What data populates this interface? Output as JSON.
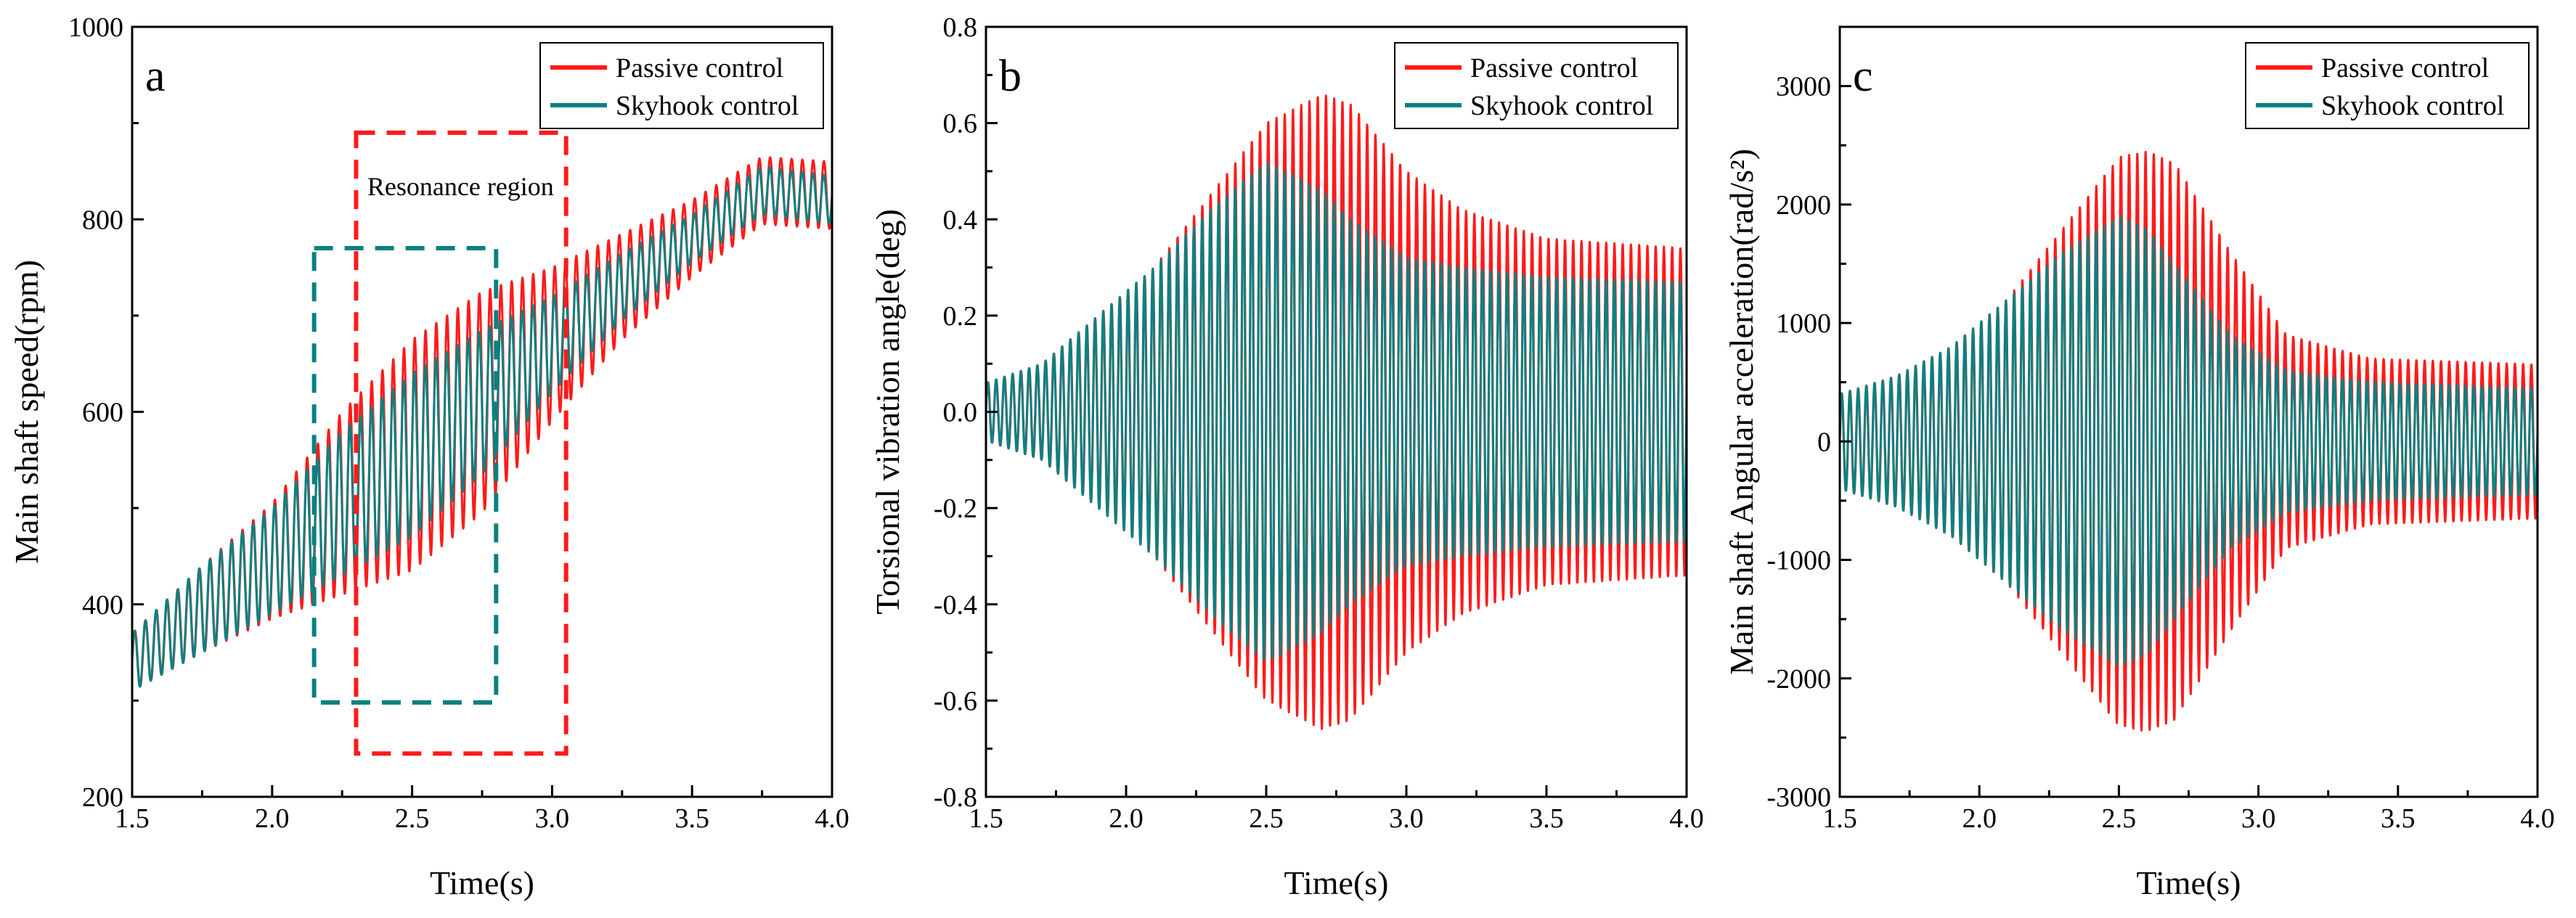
{
  "chart_data": [
    {
      "type": "line",
      "panel_label": "a",
      "xlabel": "Time(s)",
      "ylabel": "Main shaft speed(rpm)",
      "xlim": [
        1.5,
        4.0
      ],
      "ylim": [
        200,
        1000
      ],
      "xticks": [
        "1.5",
        "2.0",
        "2.5",
        "3.0",
        "3.5",
        "4.0"
      ],
      "yticks": [
        "200",
        "400",
        "600",
        "800",
        "1000"
      ],
      "legend_position": "top-right",
      "annotation": "Resonance region",
      "regions": [
        {
          "color": "#ff1a1a",
          "x": [
            2.3,
            3.05
          ],
          "y": [
            245,
            890
          ]
        },
        {
          "color": "#0a8080",
          "x": [
            2.15,
            2.8
          ],
          "y": [
            298,
            770
          ]
        }
      ],
      "series": [
        {
          "name": "Passive control",
          "color": "#ff1a1a",
          "trend": {
            "t": [
              1.5,
              1.75,
              2.0,
              2.25,
              2.5,
              2.75,
              3.0,
              3.25,
              3.5,
              3.75,
              4.0
            ],
            "v": [
              340,
              395,
              445,
              505,
              555,
              610,
              670,
              730,
              780,
              830,
              825
            ]
          },
          "amplitude": {
            "t": [
              1.5,
              1.75,
              2.0,
              2.25,
              2.5,
              2.75,
              3.0,
              3.25,
              3.5,
              3.75,
              4.0
            ],
            "v": [
              30,
              45,
              60,
              95,
              120,
              115,
              80,
              55,
              40,
              35,
              35
            ]
          }
        },
        {
          "name": "Skyhook control",
          "color": "#0a8080",
          "trend": {
            "t": [
              1.5,
              1.75,
              2.0,
              2.25,
              2.5,
              2.75,
              3.0,
              3.25,
              3.5,
              3.75,
              4.0
            ],
            "v": [
              340,
              395,
              445,
              505,
              555,
              610,
              670,
              730,
              780,
              830,
              820
            ]
          },
          "amplitude": {
            "t": [
              1.5,
              1.75,
              2.0,
              2.25,
              2.5,
              2.75,
              3.0,
              3.25,
              3.5,
              3.75,
              4.0
            ],
            "v": [
              30,
              45,
              55,
              75,
              85,
              75,
              50,
              35,
              25,
              25,
              25
            ]
          }
        }
      ]
    },
    {
      "type": "line",
      "panel_label": "b",
      "xlabel": "Time(s)",
      "ylabel": "Torsional vibration angle(deg)",
      "xlim": [
        1.5,
        4.0
      ],
      "ylim": [
        -0.8,
        0.8
      ],
      "xticks": [
        "1.5",
        "2.0",
        "2.5",
        "3.0",
        "3.5",
        "4.0"
      ],
      "yticks": [
        "-0.8",
        "-0.6",
        "-0.4",
        "-0.2",
        "0.0",
        "0.2",
        "0.4",
        "0.6",
        "0.8"
      ],
      "legend_position": "top-right",
      "series": [
        {
          "name": "Passive control",
          "color": "#ff1a1a",
          "trend": {
            "t": [
              1.5,
              4.0
            ],
            "v": [
              0,
              0
            ]
          },
          "amplitude": {
            "t": [
              1.5,
              1.7,
              1.9,
              2.1,
              2.3,
              2.5,
              2.7,
              2.8,
              3.0,
              3.2,
              3.5,
              4.0
            ],
            "v": [
              0.06,
              0.1,
              0.2,
              0.3,
              0.45,
              0.6,
              0.66,
              0.64,
              0.5,
              0.42,
              0.36,
              0.34
            ]
          }
        },
        {
          "name": "Skyhook control",
          "color": "#0a8080",
          "trend": {
            "t": [
              1.5,
              4.0
            ],
            "v": [
              0,
              0
            ]
          },
          "amplitude": {
            "t": [
              1.5,
              1.7,
              1.9,
              2.1,
              2.3,
              2.5,
              2.7,
              2.8,
              3.0,
              3.2,
              3.5,
              4.0
            ],
            "v": [
              0.06,
              0.1,
              0.2,
              0.3,
              0.42,
              0.52,
              0.46,
              0.4,
              0.32,
              0.3,
              0.28,
              0.27
            ]
          }
        }
      ]
    },
    {
      "type": "line",
      "panel_label": "c",
      "xlabel": "Time(s)",
      "ylabel": "Main shaft Angular acceleration(rad/s²)",
      "xlim": [
        1.5,
        4.0
      ],
      "ylim": [
        -3000,
        3500
      ],
      "xticks": [
        "1.5",
        "2.0",
        "2.5",
        "3.0",
        "3.5",
        "4.0"
      ],
      "yticks": [
        "-3000",
        "-2000",
        "-1000",
        "0",
        "1000",
        "2000",
        "3000"
      ],
      "legend_position": "top-right",
      "series": [
        {
          "name": "Passive control",
          "color": "#ff1a1a",
          "trend": {
            "t": [
              1.5,
              4.0
            ],
            "v": [
              0,
              0
            ]
          },
          "amplitude": {
            "t": [
              1.5,
              1.7,
              1.9,
              2.1,
              2.3,
              2.5,
              2.6,
              2.7,
              2.9,
              3.1,
              3.4,
              4.0
            ],
            "v": [
              400,
              550,
              800,
              1200,
              1800,
              2400,
              2450,
              2350,
              1600,
              900,
              700,
              650
            ]
          }
        },
        {
          "name": "Skyhook control",
          "color": "#0a8080",
          "trend": {
            "t": [
              1.5,
              4.0
            ],
            "v": [
              0,
              0
            ]
          },
          "amplitude": {
            "t": [
              1.5,
              1.7,
              1.9,
              2.1,
              2.3,
              2.5,
              2.6,
              2.7,
              2.9,
              3.1,
              3.4,
              4.0
            ],
            "v": [
              400,
              550,
              800,
              1200,
              1600,
              1900,
              1800,
              1500,
              900,
              600,
              500,
              450
            ]
          }
        }
      ]
    }
  ]
}
